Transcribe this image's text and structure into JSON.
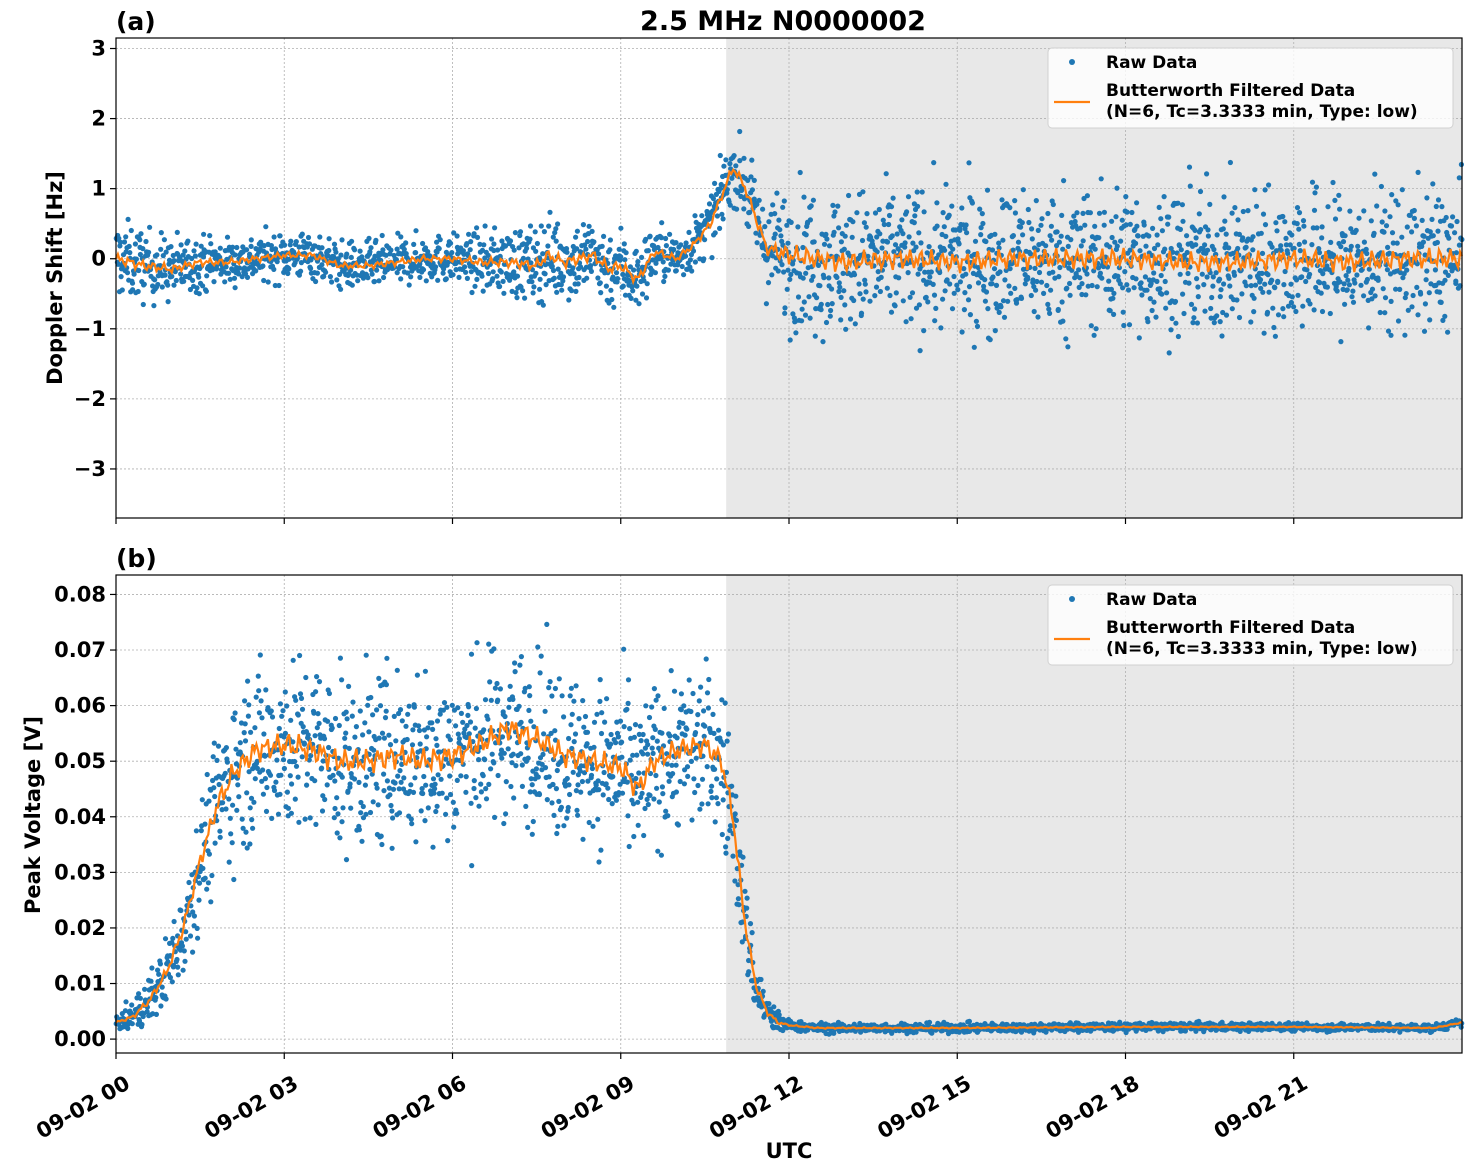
{
  "figure": {
    "title": "2.5 MHz N0000002",
    "xlabel": "UTC",
    "shade_color": "#e8e8e8",
    "raw_color": "#1f77b4",
    "filtered_color": "#ff7f0e"
  },
  "chart_data": [
    {
      "type": "scatter",
      "panel_label": "(a)",
      "ylabel": "Doppler Shift [Hz]",
      "x_unit": "hours UTC on 09-02",
      "xlim": [
        0,
        24
      ],
      "ylim": [
        -3.7,
        3.15
      ],
      "yticks": [
        -3,
        -2,
        -1,
        0,
        1,
        2,
        3
      ],
      "ytick_labels": [
        "−3",
        "−2",
        "−1",
        "0",
        "1",
        "2",
        "3"
      ],
      "xticks": [
        0,
        3,
        6,
        9,
        12,
        15,
        18,
        21
      ],
      "grid": true,
      "shaded_region": [
        10.88,
        24
      ],
      "legend": {
        "placement": "top-right",
        "entries": [
          "Raw Data",
          "Butterworth Filtered Data\n(N=6, Tc=3.3333 min, Type: low)"
        ]
      },
      "series": [
        {
          "name": "Butterworth Filtered Data\n(N=6, Tc=3.3333 min, Type: low)",
          "x": [
            0,
            0.5,
            1,
            1.5,
            2,
            2.5,
            3,
            3.5,
            4,
            4.5,
            5,
            5.5,
            6,
            6.5,
            7,
            7.5,
            7.7,
            8,
            8.5,
            8.8,
            9,
            9.3,
            9.6,
            10,
            10.3,
            10.6,
            10.8,
            11.0,
            11.2,
            11.4,
            11.6,
            11.8,
            12,
            12.5,
            13,
            14,
            15,
            16,
            17,
            18,
            19,
            20,
            21,
            22,
            23,
            24
          ],
          "y": [
            0.0,
            -0.1,
            -0.15,
            -0.05,
            -0.05,
            0.0,
            0.05,
            0.05,
            -0.1,
            -0.1,
            -0.05,
            0.0,
            0.0,
            -0.05,
            -0.05,
            -0.1,
            0.05,
            -0.05,
            0.05,
            -0.15,
            -0.1,
            -0.3,
            0.1,
            0.0,
            0.2,
            0.5,
            0.9,
            1.3,
            1.05,
            0.6,
            0.15,
            0.1,
            0.05,
            0.0,
            -0.05,
            0.0,
            -0.05,
            0.0,
            0.0,
            0.0,
            -0.05,
            -0.05,
            0.0,
            -0.05,
            0.0,
            0.0
          ]
        },
        {
          "name": "Raw Data",
          "description": "dense per-sample scatter around the filtered curve",
          "spread_envelope_x": [
            0,
            2,
            6,
            7.5,
            9,
            10,
            10.9,
            11.5,
            12,
            15,
            18,
            21,
            24
          ],
          "spread_halfwidth_hz": [
            0.5,
            0.3,
            0.3,
            0.5,
            0.5,
            0.3,
            0.4,
            0.5,
            0.9,
            0.9,
            0.9,
            0.9,
            0.9
          ]
        }
      ]
    },
    {
      "type": "scatter",
      "panel_label": "(b)",
      "ylabel": "Peak Voltage [V]",
      "x_unit": "hours UTC on 09-02",
      "xlim": [
        0,
        24
      ],
      "ylim": [
        -0.0025,
        0.0835
      ],
      "yticks": [
        0.0,
        0.01,
        0.02,
        0.03,
        0.04,
        0.05,
        0.06,
        0.07,
        0.08
      ],
      "ytick_labels": [
        "0.00",
        "0.01",
        "0.02",
        "0.03",
        "0.04",
        "0.05",
        "0.06",
        "0.07",
        "0.08"
      ],
      "xticks": [
        0,
        3,
        6,
        9,
        12,
        15,
        18,
        21
      ],
      "xtick_labels": [
        "09-02 00",
        "09-02 03",
        "09-02 06",
        "09-02 09",
        "09-02 12",
        "09-02 15",
        "09-02 18",
        "09-02 21"
      ],
      "grid": true,
      "shaded_region": [
        10.88,
        24
      ],
      "legend": {
        "placement": "top-right",
        "entries": [
          "Raw Data",
          "Butterworth Filtered Data\n(N=6, Tc=3.3333 min, Type: low)"
        ]
      },
      "series": [
        {
          "name": "Butterworth Filtered Data\n(N=6, Tc=3.3333 min, Type: low)",
          "x": [
            0,
            0.3,
            0.6,
            0.9,
            1.2,
            1.5,
            1.8,
            2.1,
            2.5,
            3,
            3.5,
            4,
            4.5,
            5,
            5.5,
            6,
            6.5,
            7,
            7.5,
            8,
            8.5,
            9,
            9.3,
            9.6,
            10,
            10.5,
            10.8,
            11.0,
            11.2,
            11.4,
            11.6,
            11.8,
            12,
            12.5,
            13,
            15,
            18,
            21,
            23.5,
            24
          ],
          "y": [
            0.003,
            0.004,
            0.007,
            0.012,
            0.02,
            0.032,
            0.042,
            0.048,
            0.052,
            0.053,
            0.052,
            0.05,
            0.05,
            0.051,
            0.05,
            0.051,
            0.053,
            0.056,
            0.054,
            0.051,
            0.05,
            0.049,
            0.045,
            0.05,
            0.052,
            0.053,
            0.05,
            0.04,
            0.022,
            0.01,
            0.005,
            0.003,
            0.0025,
            0.002,
            0.002,
            0.002,
            0.0022,
            0.0022,
            0.002,
            0.003
          ]
        },
        {
          "name": "Raw Data",
          "description": "dense per-sample scatter around the filtered curve",
          "spread_envelope_x": [
            0,
            1,
            2,
            3,
            6,
            9,
            10.9,
            11.5,
            12,
            24
          ],
          "spread_halfwidth_v": [
            0.001,
            0.006,
            0.013,
            0.014,
            0.014,
            0.013,
            0.012,
            0.004,
            0.0008,
            0.0006
          ]
        }
      ]
    }
  ]
}
